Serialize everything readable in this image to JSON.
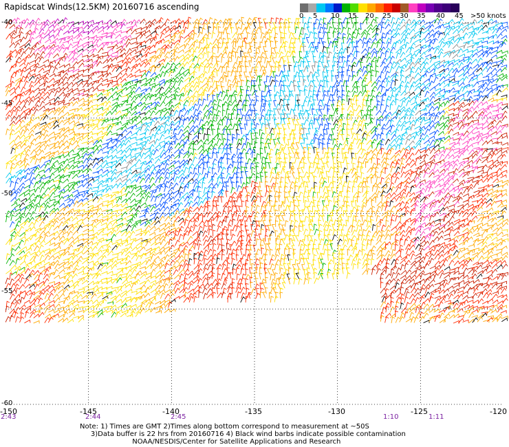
{
  "title": "Rapidscat Winds(12.5KM) 20160716 ascending",
  "legend": {
    "labels": [
      "0",
      "5",
      "10",
      "15",
      "20",
      "25",
      "30",
      "35",
      "40",
      "45",
      ">50 knots"
    ],
    "colors": [
      "#6e6e6e",
      "#a8a8a8",
      "#00c8f0",
      "#0078ff",
      "#0018c8",
      "#00b400",
      "#50dc00",
      "#ffe000",
      "#ffa800",
      "#ff6a00",
      "#ff1e00",
      "#c80000",
      "#a05a28",
      "#ff40c0",
      "#c000c0",
      "#7800b4",
      "#50008c",
      "#3c0078",
      "#28005a"
    ]
  },
  "map": {
    "lat_labels": [
      "-40",
      "-45",
      "-50",
      "-55",
      "-60"
    ],
    "lon_labels": [
      "-150",
      "-145",
      "-140",
      "-135",
      "-130",
      "-125",
      "-120"
    ],
    "time_labels": [
      {
        "lon": -150,
        "text": "2:43"
      },
      {
        "lon": -145,
        "text": "2:44"
      },
      {
        "lon": -140,
        "text": "2:45"
      },
      {
        "lon": -127.5,
        "text": "1:10"
      },
      {
        "lon": -124.5,
        "text": "1:11"
      }
    ],
    "lat_range": [
      -40,
      -60
    ],
    "lon_range": [
      -150,
      -120
    ],
    "grid": "dotted"
  },
  "note": {
    "line1": "Note: 1) Times are GMT 2)Times along bottom correspond to measurement at ~50S",
    "line2": "     3)Data buffer is 22 hrs from 20160716 4) Black wind barbs indicate possible contamination",
    "line3": "                        NOAA/NESDIS/Center for Satellite Applications and Research"
  }
}
